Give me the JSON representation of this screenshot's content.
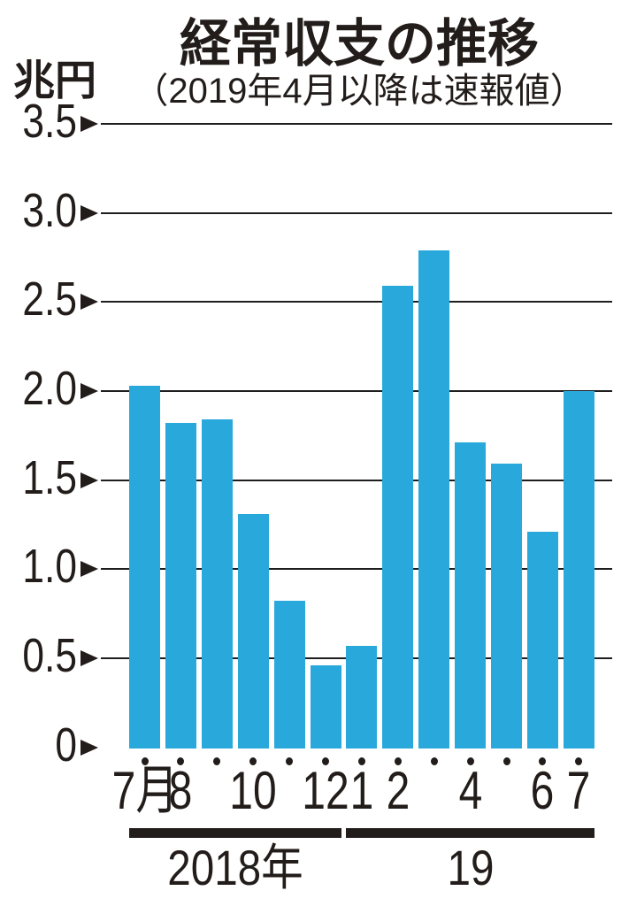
{
  "header": {
    "title": "経常収支の推移",
    "subtitle": "（2019年4月以降は速報値）",
    "unit_label": "兆円"
  },
  "colors": {
    "bar": "#29A8DB",
    "ink": "#221D1A",
    "grid": "#1E1E1E"
  },
  "chart_data": {
    "type": "bar",
    "title": "経常収支の推移",
    "subtitle": "（2019年4月以降は速報値）",
    "ylabel": "兆円",
    "ylim": [
      0,
      3.5
    ],
    "grid": true,
    "legend": "none",
    "y_ticks": [
      {
        "label": "3.5",
        "value": 3.5
      },
      {
        "label": "3.0",
        "value": 3.0
      },
      {
        "label": "2.5",
        "value": 2.5
      },
      {
        "label": "2.0",
        "value": 2.0
      },
      {
        "label": "1.5",
        "value": 1.5
      },
      {
        "label": "1.0",
        "value": 1.0
      },
      {
        "label": "0.5",
        "value": 0.5
      },
      {
        "label": "0",
        "value": 0.0
      }
    ],
    "categories": [
      "2018-07",
      "2018-08",
      "2018-09",
      "2018-10",
      "2018-11",
      "2018-12",
      "2019-01",
      "2019-02",
      "2019-03",
      "2019-04",
      "2019-05",
      "2019-06",
      "2019-07"
    ],
    "x_tick_labels": [
      "7月",
      "8",
      "",
      "10",
      "",
      "12",
      "1",
      "2",
      "",
      "4",
      "",
      "6",
      "7"
    ],
    "values": [
      2.03,
      1.82,
      1.84,
      1.31,
      0.82,
      0.46,
      0.57,
      2.59,
      2.79,
      1.71,
      1.59,
      1.21,
      2.0
    ],
    "year_groups": [
      {
        "label": "2018年",
        "from": 0,
        "to": 5
      },
      {
        "label": "19",
        "from": 6,
        "to": 12
      }
    ]
  }
}
